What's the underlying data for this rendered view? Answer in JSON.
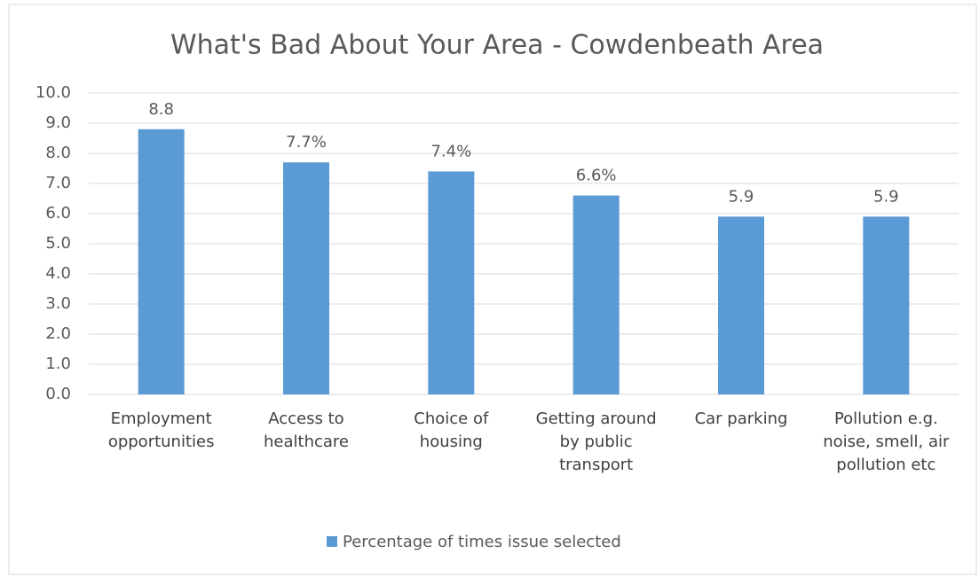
{
  "chart_data": {
    "type": "bar",
    "title": "What's Bad About Your Area - Cowdenbeath Area",
    "categories": [
      "Employment opportunities",
      "Access to healthcare",
      "Choice of housing",
      "Getting around by public transport",
      "Car parking",
      "Pollution e.g. noise, smell, air pollution etc"
    ],
    "series": [
      {
        "name": "Percentage of times issue selected",
        "color": "#5b9bd5",
        "values": [
          8.8,
          7.7,
          7.4,
          6.6,
          5.9,
          5.9
        ],
        "value_labels": [
          "8.8",
          "7.7%",
          "7.4%",
          "6.6%",
          "5.9",
          "5.9"
        ]
      }
    ],
    "ylim": [
      0,
      10
    ],
    "yticks": [
      {
        "value": 0,
        "label": "0.0"
      },
      {
        "value": 1,
        "label": "1.0"
      },
      {
        "value": 2,
        "label": "2.0"
      },
      {
        "value": 3,
        "label": "3.0"
      },
      {
        "value": 4,
        "label": "4.0"
      },
      {
        "value": 5,
        "label": "5.0"
      },
      {
        "value": 6,
        "label": "6.0"
      },
      {
        "value": 7,
        "label": "7.0"
      },
      {
        "value": 8,
        "label": "8.0"
      },
      {
        "value": 9,
        "label": "9.0"
      },
      {
        "value": 10,
        "label": "10.0"
      }
    ],
    "grid": true,
    "legend": "bottom"
  }
}
